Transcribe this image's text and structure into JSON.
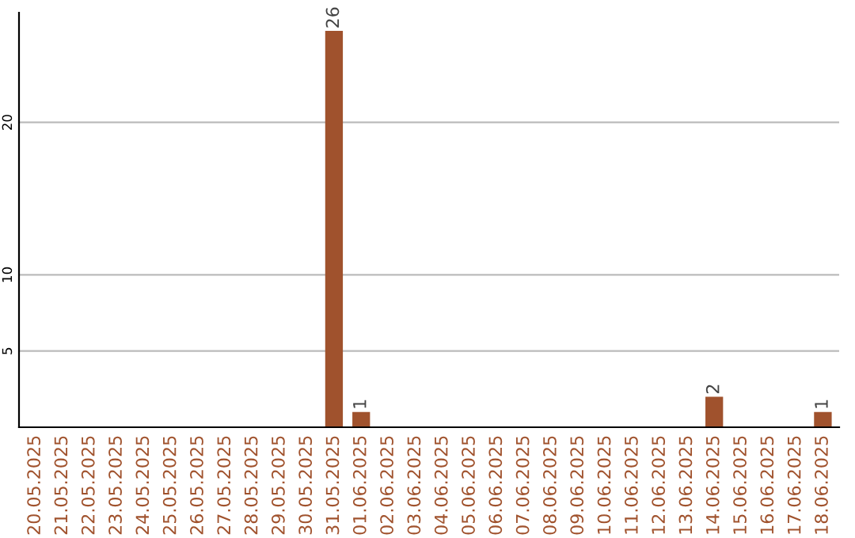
{
  "chart_data": {
    "type": "bar",
    "categories": [
      "20.05.2025",
      "21.05.2025",
      "22.05.2025",
      "23.05.2025",
      "24.05.2025",
      "25.05.2025",
      "26.05.2025",
      "27.05.2025",
      "28.05.2025",
      "29.05.2025",
      "30.05.2025",
      "31.05.2025",
      "01.06.2025",
      "02.06.2025",
      "03.06.2025",
      "04.06.2025",
      "05.06.2025",
      "06.06.2025",
      "07.06.2025",
      "08.06.2025",
      "09.06.2025",
      "10.06.2025",
      "11.06.2025",
      "12.06.2025",
      "13.06.2025",
      "14.06.2025",
      "15.06.2025",
      "16.06.2025",
      "17.06.2025",
      "18.06.2025"
    ],
    "values": [
      0,
      0,
      0,
      0,
      0,
      0,
      0,
      0,
      0,
      0,
      0,
      26,
      1,
      0,
      0,
      0,
      0,
      0,
      0,
      0,
      0,
      0,
      0,
      0,
      0,
      2,
      0,
      0,
      0,
      1
    ],
    "value_labels": [
      null,
      null,
      null,
      null,
      null,
      null,
      null,
      null,
      null,
      null,
      null,
      "26",
      "1",
      null,
      null,
      null,
      null,
      null,
      null,
      null,
      null,
      null,
      null,
      null,
      null,
      "2",
      null,
      null,
      null,
      "1"
    ],
    "color": "#a0522d",
    "ylim": [
      0,
      27.2
    ],
    "yticks": [
      5,
      10,
      20
    ],
    "grid": "y",
    "legend": false
  }
}
